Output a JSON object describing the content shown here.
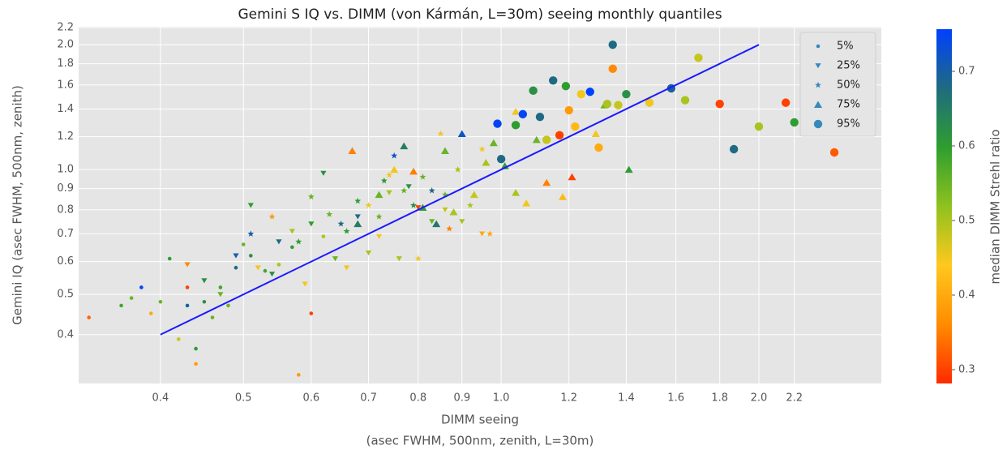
{
  "chart_data": {
    "type": "scatter",
    "title": "Gemini S IQ vs. DIMM (von Kármán, L=30m) seeing monthly quantiles",
    "x_label": [
      "DIMM seeing",
      "(asec FWHM, 500nm, zenith, L=30m)"
    ],
    "y_label": "Gemini IQ (asec FWHM, 500nm, zenith)",
    "log_x": true,
    "log_y": true,
    "grid": true,
    "xlim": [
      0.321,
      2.78
    ],
    "ylim": [
      0.305,
      2.21
    ],
    "xticks": [
      0.4,
      0.5,
      0.6,
      0.7,
      0.8,
      0.9,
      {
        "value": 1,
        "label": "1.0"
      },
      1.2,
      1.4,
      1.6,
      1.8,
      {
        "value": 2,
        "label": "2.0"
      },
      2.2
    ],
    "yticks": [
      0.4,
      0.5,
      0.6,
      0.7,
      0.8,
      0.9,
      {
        "value": 1,
        "label": "1.0"
      },
      1.2,
      1.4,
      1.6,
      1.8,
      {
        "value": 2,
        "label": "2.0"
      },
      2.2
    ],
    "legend_position": "upper right",
    "legend_color": "#348ABD",
    "reference_line": {
      "x": [
        0.4,
        2.0
      ],
      "y": [
        0.4,
        2.0
      ],
      "color": "#1a1aff"
    },
    "colorbar": {
      "label": "median DIMM Strehl ratio",
      "lim": [
        0.2815,
        0.7565
      ],
      "ticks": [
        0.3,
        0.4,
        0.5,
        0.6,
        0.7
      ],
      "colors": [
        "#ff2a00",
        "#ff8c00",
        "#ffc81e",
        "#8fc21e",
        "#2e9e2e",
        "#1f6b80",
        "#0040ff"
      ]
    },
    "series": [
      {
        "name": "5%",
        "marker": "point",
        "x": [
          0.33,
          0.36,
          0.37,
          0.38,
          0.39,
          0.4,
          0.41,
          0.42,
          0.43,
          0.43,
          0.44,
          0.45,
          0.46,
          0.47,
          0.48,
          0.49,
          0.5,
          0.51,
          0.53,
          0.55,
          0.57,
          0.58,
          0.6,
          0.62,
          0.44
        ],
        "values": [
          0.44,
          0.47,
          0.49,
          0.52,
          0.45,
          0.48,
          0.61,
          0.39,
          0.47,
          0.52,
          0.37,
          0.48,
          0.44,
          0.52,
          0.47,
          0.58,
          0.66,
          0.62,
          0.57,
          0.59,
          0.65,
          0.32,
          0.45,
          0.69,
          0.34
        ],
        "strehl": [
          0.33,
          0.58,
          0.55,
          0.75,
          0.4,
          0.55,
          0.6,
          0.48,
          0.7,
          0.3,
          0.6,
          0.62,
          0.55,
          0.58,
          0.55,
          0.68,
          0.55,
          0.62,
          0.58,
          0.5,
          0.6,
          0.38,
          0.3,
          0.5,
          0.38
        ]
      },
      {
        "name": "25%",
        "marker": "triangle-down",
        "x": [
          0.43,
          0.45,
          0.47,
          0.49,
          0.51,
          0.52,
          0.54,
          0.55,
          0.57,
          0.59,
          0.6,
          0.62,
          0.64,
          0.66,
          0.68,
          0.7,
          0.72,
          0.74,
          0.76,
          0.78,
          0.8,
          0.83,
          0.86,
          0.9,
          0.95
        ],
        "values": [
          0.59,
          0.54,
          0.5,
          0.62,
          0.82,
          0.58,
          0.56,
          0.67,
          0.71,
          0.53,
          0.74,
          0.98,
          0.61,
          0.58,
          0.77,
          0.63,
          0.69,
          0.88,
          0.61,
          0.91,
          0.81,
          0.75,
          0.8,
          0.75,
          0.7
        ],
        "strehl": [
          0.36,
          0.62,
          0.55,
          0.7,
          0.6,
          0.45,
          0.62,
          0.68,
          0.5,
          0.45,
          0.6,
          0.62,
          0.55,
          0.45,
          0.68,
          0.5,
          0.45,
          0.5,
          0.5,
          0.62,
          0.3,
          0.55,
          0.48,
          0.5,
          0.4
        ]
      },
      {
        "name": "50%",
        "marker": "star",
        "x": [
          0.51,
          0.54,
          0.58,
          0.6,
          0.63,
          0.65,
          0.68,
          0.7,
          0.72,
          0.74,
          0.75,
          0.77,
          0.79,
          0.81,
          0.83,
          0.85,
          0.87,
          0.89,
          0.92,
          0.95,
          0.97,
          0.8,
          0.66,
          0.73,
          0.86
        ],
        "values": [
          0.7,
          0.77,
          0.67,
          0.86,
          0.78,
          0.74,
          0.84,
          0.82,
          0.77,
          0.97,
          1.08,
          0.89,
          0.82,
          0.96,
          0.89,
          1.22,
          0.72,
          1.0,
          0.82,
          1.12,
          0.7,
          0.61,
          0.71,
          0.94,
          0.87
        ],
        "strehl": [
          0.7,
          0.38,
          0.6,
          0.55,
          0.55,
          0.68,
          0.6,
          0.45,
          0.55,
          0.45,
          0.72,
          0.55,
          0.62,
          0.55,
          0.68,
          0.45,
          0.35,
          0.5,
          0.5,
          0.45,
          0.4,
          0.45,
          0.6,
          0.6,
          0.55
        ]
      },
      {
        "name": "75%",
        "marker": "triangle-up",
        "x": [
          0.67,
          0.68,
          0.72,
          0.75,
          0.77,
          0.79,
          0.81,
          0.84,
          0.86,
          0.88,
          0.9,
          0.93,
          0.96,
          0.98,
          1.01,
          1.04,
          1.07,
          1.1,
          1.13,
          1.18,
          1.21,
          1.29,
          1.32,
          1.41,
          1.04
        ],
        "values": [
          1.11,
          0.74,
          0.87,
          1.0,
          1.14,
          0.99,
          0.81,
          0.74,
          1.11,
          0.79,
          1.22,
          0.87,
          1.04,
          1.16,
          1.02,
          1.38,
          0.83,
          1.18,
          0.93,
          0.86,
          0.96,
          1.22,
          1.43,
          1.0,
          0.88
        ],
        "strehl": [
          0.35,
          0.65,
          0.55,
          0.45,
          0.65,
          0.35,
          0.6,
          0.66,
          0.55,
          0.5,
          0.72,
          0.48,
          0.5,
          0.55,
          0.6,
          0.45,
          0.45,
          0.55,
          0.35,
          0.42,
          0.3,
          0.45,
          0.55,
          0.6,
          0.5
        ]
      },
      {
        "name": "95%",
        "marker": "circle",
        "x": [
          0.99,
          1.0,
          1.04,
          1.06,
          1.09,
          1.11,
          1.13,
          1.15,
          1.17,
          1.19,
          1.2,
          1.22,
          1.24,
          1.27,
          1.3,
          1.33,
          1.35,
          1.37,
          1.4,
          1.49,
          1.58,
          1.64,
          1.7,
          1.8,
          1.87,
          2.0,
          2.15,
          2.2,
          2.45,
          1.35
        ],
        "values": [
          1.29,
          1.06,
          1.28,
          1.36,
          1.55,
          1.34,
          1.18,
          1.64,
          1.21,
          1.59,
          1.39,
          1.27,
          1.52,
          1.54,
          1.13,
          1.44,
          2.0,
          1.43,
          1.52,
          1.45,
          1.57,
          1.47,
          1.86,
          1.44,
          1.12,
          1.27,
          1.45,
          1.3,
          1.1,
          1.75
        ],
        "strehl": [
          0.75,
          0.68,
          0.6,
          0.75,
          0.62,
          0.68,
          0.48,
          0.68,
          0.3,
          0.6,
          0.38,
          0.42,
          0.45,
          0.76,
          0.4,
          0.5,
          0.68,
          0.48,
          0.62,
          0.45,
          0.7,
          0.5,
          0.48,
          0.3,
          0.68,
          0.5,
          0.3,
          0.6,
          0.32,
          0.36
        ]
      }
    ]
  }
}
